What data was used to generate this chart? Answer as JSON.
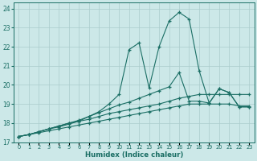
{
  "xlabel": "Humidex (Indice chaleur)",
  "xlim": [
    0,
    23
  ],
  "ylim": [
    17,
    24.3
  ],
  "yticks": [
    17,
    18,
    19,
    20,
    21,
    22,
    23,
    24
  ],
  "xticks": [
    0,
    1,
    2,
    3,
    4,
    5,
    6,
    7,
    8,
    9,
    10,
    11,
    12,
    13,
    14,
    15,
    16,
    17,
    18,
    19,
    20,
    21,
    22,
    23
  ],
  "bg_color": "#cce8e8",
  "grid_color": "#aacccc",
  "line_color": "#1a6e64",
  "line1_y": [
    17.3,
    17.4,
    17.5,
    17.6,
    17.7,
    17.8,
    17.9,
    18.0,
    18.1,
    18.2,
    18.3,
    18.4,
    18.5,
    18.6,
    18.7,
    18.8,
    18.9,
    19.0,
    19.0,
    19.0,
    19.0,
    19.0,
    18.9,
    18.9
  ],
  "line2_y": [
    17.3,
    17.4,
    17.55,
    17.7,
    17.8,
    17.95,
    18.1,
    18.2,
    18.35,
    18.5,
    18.6,
    18.7,
    18.8,
    18.9,
    19.0,
    19.15,
    19.3,
    19.4,
    19.5,
    19.5,
    19.5,
    19.5,
    19.5,
    19.5
  ],
  "line3_y": [
    17.3,
    17.4,
    17.55,
    17.7,
    17.85,
    18.0,
    18.15,
    18.35,
    18.55,
    18.75,
    18.95,
    19.1,
    19.3,
    19.5,
    19.7,
    19.9,
    20.65,
    19.15,
    19.15,
    19.05,
    19.8,
    19.6,
    18.85,
    18.85
  ],
  "line4_y": [
    17.3,
    17.4,
    17.55,
    17.7,
    17.85,
    18.0,
    18.1,
    18.35,
    18.6,
    19.0,
    19.5,
    21.85,
    22.2,
    19.85,
    22.0,
    23.35,
    23.8,
    23.45,
    20.75,
    19.05,
    19.8,
    19.6,
    18.85,
    18.85
  ]
}
